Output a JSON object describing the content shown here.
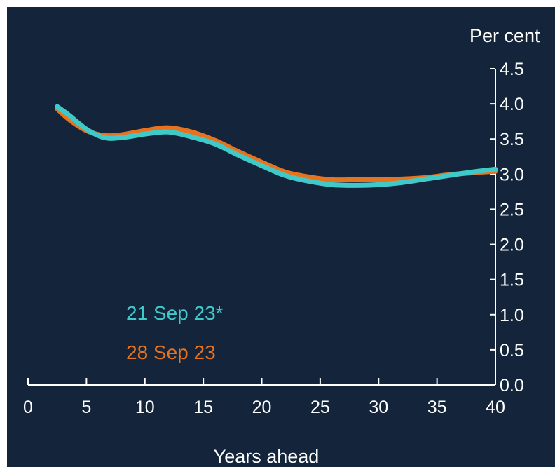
{
  "chart_data": {
    "type": "line",
    "title": "",
    "xlabel": "Years ahead",
    "ylabel": "Per cent",
    "xlim": [
      0,
      40
    ],
    "ylim": [
      0.0,
      4.5
    ],
    "x_ticks": [
      "0",
      "5",
      "10",
      "15",
      "20",
      "25",
      "30",
      "35",
      "40"
    ],
    "y_ticks": [
      "0.0",
      "0.5",
      "1.0",
      "1.5",
      "2.0",
      "2.5",
      "3.0",
      "3.5",
      "4.0",
      "4.5"
    ],
    "grid": false,
    "legend_position": "lower-left",
    "series": [
      {
        "name": "21 Sep 23*",
        "color": "#3fc9c9",
        "x": [
          2.5,
          3.5,
          5,
          6.5,
          8,
          10,
          12,
          14,
          16,
          18,
          20,
          22,
          24,
          26,
          28,
          30,
          32,
          34,
          36,
          38,
          40
        ],
        "y": [
          3.96,
          3.84,
          3.64,
          3.52,
          3.52,
          3.57,
          3.6,
          3.53,
          3.43,
          3.27,
          3.12,
          2.98,
          2.9,
          2.85,
          2.84,
          2.85,
          2.88,
          2.93,
          2.98,
          3.03,
          3.07
        ]
      },
      {
        "name": "28 Sep 23",
        "color": "#e8731e",
        "x": [
          2.5,
          3.5,
          5,
          6.5,
          8,
          10,
          12,
          14,
          16,
          18,
          20,
          22,
          24,
          26,
          28,
          30,
          32,
          34,
          36,
          38,
          40
        ],
        "y": [
          3.93,
          3.78,
          3.62,
          3.55,
          3.56,
          3.62,
          3.66,
          3.6,
          3.48,
          3.32,
          3.17,
          3.03,
          2.96,
          2.92,
          2.92,
          2.92,
          2.93,
          2.95,
          2.99,
          3.02,
          3.04
        ]
      }
    ]
  }
}
